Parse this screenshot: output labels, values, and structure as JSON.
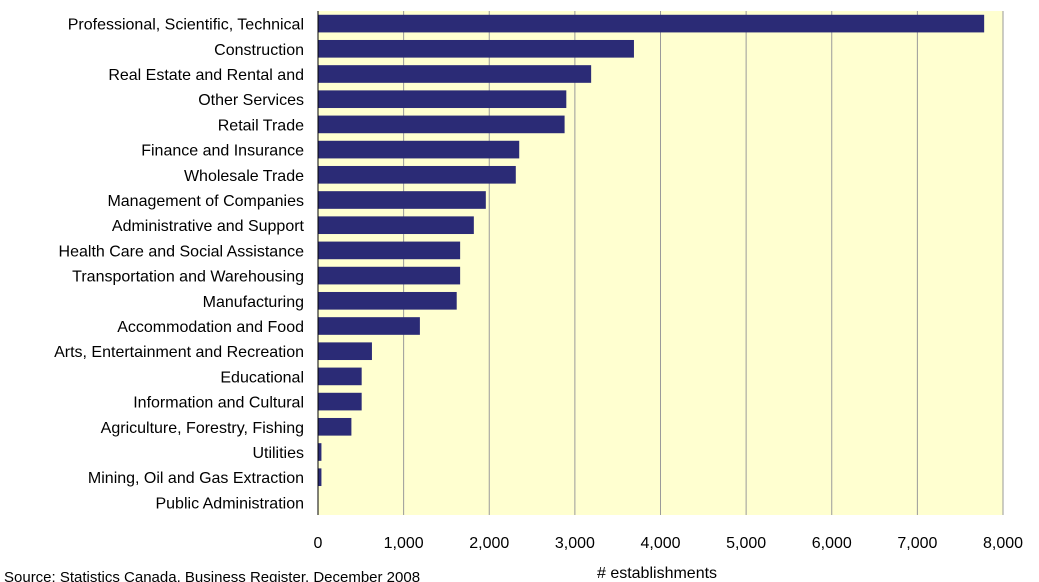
{
  "chart_data": {
    "type": "bar",
    "orientation": "horizontal",
    "categories": [
      "Professional, Scientific, Technical",
      "Construction",
      "Real Estate and Rental and",
      "Other Services ",
      "Retail Trade",
      "Finance and Insurance",
      "Wholesale Trade",
      "Management of Companies ",
      "Administrative and Support",
      "Health Care and Social Assistance",
      "Transportation and Warehousing",
      "Manufacturing",
      "Accommodation and Food",
      "Arts, Entertainment and Recreation",
      "Educational",
      "Information and Cultural ",
      "Agriculture, Forestry, Fishing ",
      "Utilities",
      "Mining, Oil and Gas Extraction",
      "Public Administration"
    ],
    "values": [
      7780,
      3690,
      3190,
      2900,
      2880,
      2350,
      2310,
      1960,
      1820,
      1660,
      1660,
      1620,
      1190,
      630,
      510,
      510,
      390,
      40,
      40,
      0
    ],
    "xlim": [
      0,
      8000
    ],
    "xticks": [
      0,
      1000,
      2000,
      3000,
      4000,
      5000,
      6000,
      7000,
      8000
    ],
    "xtick_labels": [
      "0",
      "1,000",
      "2,000",
      "3,000",
      "4,000",
      "5,000",
      "6,000",
      "7,000",
      "8,000"
    ],
    "xlabel": "# establishments",
    "title": "",
    "grid": "vertical",
    "legend": "none",
    "colors": {
      "bar": "#2B2B76",
      "plot_background": "#FFFFD0",
      "gridline": "#9A9A9A",
      "axis": "#000000"
    }
  },
  "source_note": "Source: Statistics Canada, Business Register, December 2008"
}
